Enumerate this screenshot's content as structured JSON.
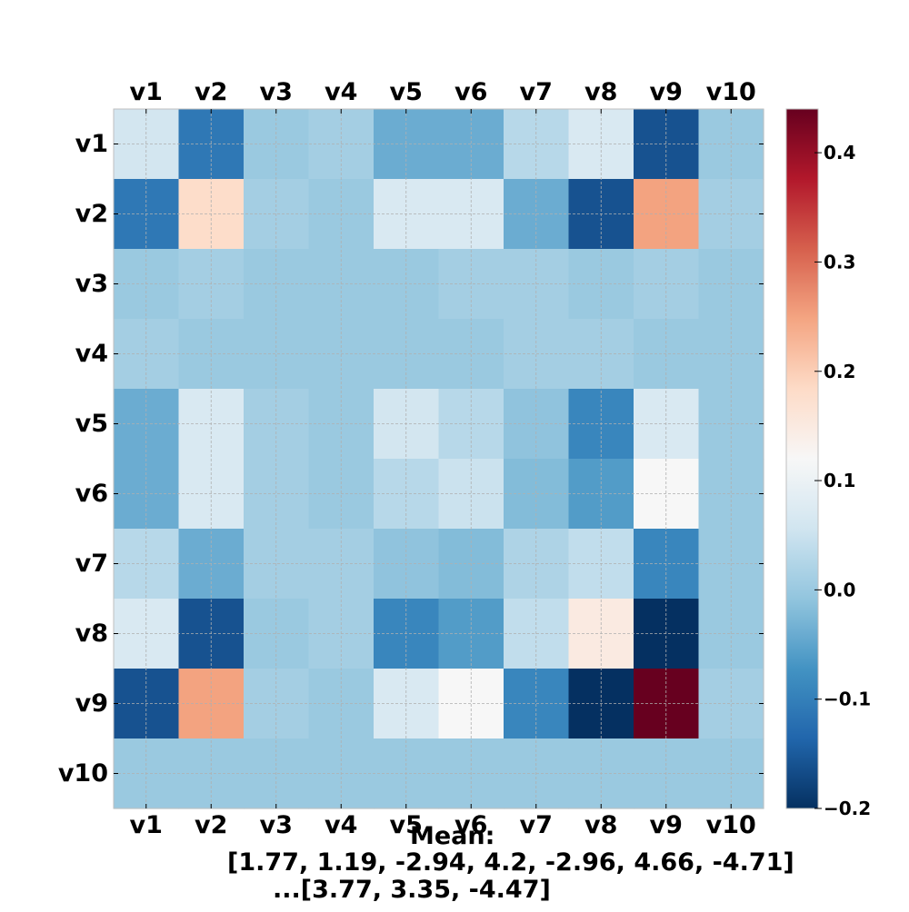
{
  "chart_data": {
    "type": "heatmap",
    "x_categories": [
      "v1",
      "v2",
      "v3",
      "v4",
      "v5",
      "v6",
      "v7",
      "v8",
      "v9",
      "v10"
    ],
    "y_categories": [
      "v1",
      "v2",
      "v3",
      "v4",
      "v5",
      "v6",
      "v7",
      "v8",
      "v9",
      "v10"
    ],
    "values": [
      [
        0.06,
        -0.11,
        0.0,
        0.01,
        -0.04,
        -0.04,
        0.03,
        0.07,
        -0.16,
        0.0
      ],
      [
        -0.11,
        0.18,
        0.01,
        0.0,
        0.07,
        0.07,
        -0.04,
        -0.16,
        0.25,
        0.01
      ],
      [
        0.0,
        0.01,
        0.0,
        0.0,
        0.0,
        0.01,
        0.01,
        0.0,
        0.01,
        0.0
      ],
      [
        0.01,
        0.0,
        0.0,
        0.0,
        0.0,
        0.0,
        0.01,
        0.01,
        0.0,
        0.0
      ],
      [
        -0.04,
        0.07,
        0.01,
        0.0,
        0.06,
        0.03,
        -0.01,
        -0.09,
        0.07,
        0.0
      ],
      [
        -0.04,
        0.07,
        0.01,
        0.0,
        0.03,
        0.05,
        -0.02,
        -0.06,
        0.12,
        0.0
      ],
      [
        0.03,
        -0.04,
        0.01,
        0.01,
        -0.01,
        -0.02,
        0.02,
        0.04,
        -0.09,
        0.0
      ],
      [
        0.07,
        -0.16,
        0.0,
        0.01,
        -0.09,
        -0.06,
        0.04,
        0.15,
        -0.2,
        0.0
      ],
      [
        -0.16,
        0.25,
        0.01,
        0.0,
        0.07,
        0.12,
        -0.09,
        -0.2,
        0.44,
        0.01
      ],
      [
        0.0,
        0.0,
        0.0,
        0.0,
        0.0,
        0.0,
        0.0,
        0.0,
        0.0,
        0.0
      ]
    ],
    "colormap": "RdBu_r",
    "colorbar": {
      "vmin": -0.2,
      "vmax": 0.44,
      "ticks": [
        -0.2,
        -0.1,
        0.0,
        0.1,
        0.2,
        0.3,
        0.4
      ],
      "tick_labels": [
        "−0.2",
        "−0.1",
        "0.0",
        "0.1",
        "0.2",
        "0.3",
        "0.4"
      ]
    },
    "grid": true,
    "title": "",
    "xlabel": "",
    "ylabel": "",
    "annotation": [
      "Mean:",
      "[1.77, 1.19, -2.94, 4.2, -2.96, 4.66, -4.71]",
      "...[3.77, 3.35, -4.47]"
    ]
  }
}
